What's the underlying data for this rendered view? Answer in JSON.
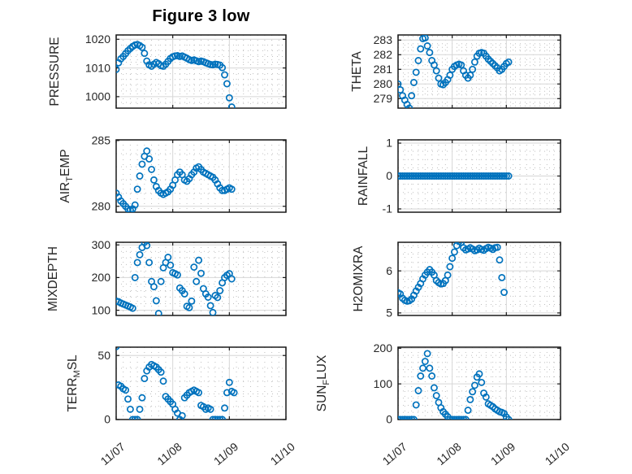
{
  "title": "Figure 3 low",
  "colors": {
    "marker": "#0072BD",
    "axis_text": "#262626",
    "border": "#1a1a1a",
    "grid_major": "#d6d6d6",
    "grid_minor": "#bfbfbf",
    "background": "#ffffff"
  },
  "x_axis": {
    "tick_labels": [
      "11/07",
      "11/08",
      "11/09",
      "11/10"
    ],
    "span_days": 3,
    "points_interval_hours": 1,
    "minor_step_hours": 3
  },
  "chart_data": [
    {
      "type": "scatter",
      "name": "pressure",
      "ylabel_parts": [
        {
          "text": "PRESSURE",
          "sub": false
        }
      ],
      "position": {
        "row": 0,
        "col": 0
      },
      "ylim": [
        996,
        1021.5
      ],
      "yticks": [
        1000,
        1010,
        1020
      ],
      "y_minor_step": 2,
      "values": [
        1009.5,
        1011.8,
        1013.2,
        1014.0,
        1015.0,
        1016.0,
        1016.8,
        1017.5,
        1018.0,
        1018.2,
        1017.8,
        1017.2,
        1015.1,
        1012.4,
        1011.1,
        1010.6,
        1011.3,
        1011.9,
        1011.5,
        1010.8,
        1010.6,
        1011.3,
        1012.3,
        1013.3,
        1013.9,
        1014.2,
        1014.3,
        1014.0,
        1014.2,
        1013.8,
        1013.4,
        1012.9,
        1012.6,
        1012.8,
        1012.5,
        1012.2,
        1012.4,
        1012.2,
        1011.8,
        1011.5,
        1011.2,
        1011.1,
        1011.3,
        1011.2,
        1011.0,
        1010.1,
        1007.6,
        1004.5,
        999.6,
        996.4
      ]
    },
    {
      "type": "scatter",
      "name": "theta",
      "ylabel_parts": [
        {
          "text": "THETA",
          "sub": false
        }
      ],
      "position": {
        "row": 0,
        "col": 1
      },
      "ylim": [
        278.35,
        283.35
      ],
      "yticks": [
        279,
        280,
        281,
        282,
        283
      ],
      "y_minor_step": 0.25,
      "values": [
        280.0,
        279.6,
        279.2,
        278.9,
        278.6,
        278.35,
        279.2,
        280.1,
        280.8,
        281.6,
        282.4,
        283.1,
        283.15,
        282.6,
        282.15,
        281.6,
        281.3,
        280.9,
        280.4,
        280.0,
        279.95,
        280.1,
        280.3,
        280.6,
        281.0,
        281.2,
        281.3,
        281.35,
        281.3,
        280.9,
        280.6,
        280.4,
        280.6,
        281.0,
        281.5,
        281.9,
        282.1,
        282.15,
        282.1,
        281.9,
        281.7,
        281.55,
        281.4,
        281.25,
        281.1,
        280.9,
        281.0,
        281.2,
        281.4,
        281.5
      ]
    },
    {
      "type": "scatter",
      "name": "air-temp",
      "ylabel_parts": [
        {
          "text": "AIR",
          "sub": false
        },
        {
          "text": "T",
          "sub": true
        },
        {
          "text": "EMP",
          "sub": false
        }
      ],
      "position": {
        "row": 1,
        "col": 0
      },
      "ylim": [
        279.55,
        285.05
      ],
      "yticks": [
        280,
        285
      ],
      "y_minor_step": 1,
      "values": [
        281.0,
        280.7,
        280.4,
        280.2,
        280.0,
        279.8,
        279.7,
        279.8,
        280.1,
        281.3,
        282.3,
        283.2,
        283.8,
        284.2,
        283.6,
        282.8,
        282.0,
        281.5,
        281.2,
        281.0,
        280.9,
        281.0,
        281.1,
        281.3,
        281.6,
        282.0,
        282.4,
        282.6,
        282.4,
        282.0,
        281.9,
        282.1,
        282.4,
        282.6,
        282.9,
        283.0,
        282.8,
        282.6,
        282.5,
        282.4,
        282.3,
        282.2,
        282.0,
        281.7,
        281.4,
        281.2,
        281.2,
        281.3,
        281.4,
        281.3
      ]
    },
    {
      "type": "scatter",
      "name": "rainfall",
      "ylabel_parts": [
        {
          "text": "RAINFALL",
          "sub": false
        }
      ],
      "position": {
        "row": 1,
        "col": 1
      },
      "ylim": [
        -1.1,
        1.1
      ],
      "yticks": [
        -1,
        0,
        1
      ],
      "y_minor_step": 0.25,
      "values": [
        0,
        0,
        0,
        0,
        0,
        0,
        0,
        0,
        0,
        0,
        0,
        0,
        0,
        0,
        0,
        0,
        0,
        0,
        0,
        0,
        0,
        0,
        0,
        0,
        0,
        0,
        0,
        0,
        0,
        0,
        0,
        0,
        0,
        0,
        0,
        0,
        0,
        0,
        0,
        0,
        0,
        0,
        0,
        0,
        0,
        0,
        0,
        0,
        0,
        0
      ]
    },
    {
      "type": "scatter",
      "name": "mixdepth",
      "ylabel_parts": [
        {
          "text": "MIXDEPTH",
          "sub": false
        }
      ],
      "position": {
        "row": 2,
        "col": 0
      },
      "ylim": [
        84,
        308
      ],
      "yticks": [
        100,
        200,
        300
      ],
      "y_minor_step": 20,
      "values": [
        128,
        126,
        122,
        119,
        116,
        113,
        110,
        106,
        200,
        246,
        270,
        292,
        308,
        298,
        246,
        188,
        172,
        129,
        90,
        188,
        230,
        246,
        262,
        238,
        215,
        212,
        208,
        168,
        160,
        150,
        112,
        108,
        128,
        232,
        188,
        253,
        213,
        166,
        150,
        140,
        114,
        93,
        145,
        139,
        160,
        184,
        200,
        207,
        212,
        196
      ]
    },
    {
      "type": "scatter",
      "name": "h2omixra",
      "ylabel_parts": [
        {
          "text": "H2OMIXRA",
          "sub": false
        }
      ],
      "position": {
        "row": 2,
        "col": 1
      },
      "ylim": [
        4.94,
        6.68
      ],
      "yticks": [
        5,
        6
      ],
      "y_minor_step": 0.2,
      "values": [
        5.48,
        5.45,
        5.35,
        5.3,
        5.28,
        5.29,
        5.33,
        5.42,
        5.52,
        5.61,
        5.7,
        5.81,
        5.9,
        5.97,
        6.03,
        5.97,
        5.9,
        5.77,
        5.72,
        5.69,
        5.7,
        5.77,
        5.9,
        6.1,
        6.3,
        6.45,
        6.6,
        6.7,
        6.68,
        6.55,
        6.5,
        6.52,
        6.55,
        6.52,
        6.48,
        6.5,
        6.54,
        6.51,
        6.49,
        6.53,
        6.56,
        6.54,
        6.51,
        6.55,
        6.56,
        6.26,
        5.84,
        5.49
      ]
    },
    {
      "type": "scatter",
      "name": "terr-msl",
      "ylabel_parts": [
        {
          "text": "TERR",
          "sub": false
        },
        {
          "text": "M",
          "sub": true
        },
        {
          "text": "SL",
          "sub": false
        }
      ],
      "position": {
        "row": 3,
        "col": 0
      },
      "ylim": [
        0,
        56.5
      ],
      "yticks": [
        0,
        50
      ],
      "y_minor_step": 10,
      "values": [
        57,
        27,
        26,
        24,
        23,
        16,
        8,
        0,
        0,
        0,
        8,
        17,
        32,
        38,
        41,
        43,
        42,
        41,
        39,
        37,
        30,
        18,
        16,
        14,
        12,
        8,
        5,
        0,
        3,
        17,
        19,
        21,
        22,
        23,
        22,
        21,
        11,
        10,
        8,
        9,
        8,
        0,
        0,
        0,
        0,
        0,
        9,
        21,
        29,
        22,
        21
      ]
    },
    {
      "type": "scatter",
      "name": "sun-flux",
      "ylabel_parts": [
        {
          "text": "SUN",
          "sub": false
        },
        {
          "text": "F",
          "sub": true
        },
        {
          "text": "LUX",
          "sub": false
        }
      ],
      "position": {
        "row": 3,
        "col": 1
      },
      "ylim": [
        0,
        203
      ],
      "yticks": [
        0,
        100,
        200
      ],
      "y_minor_step": 20,
      "values": [
        0,
        0,
        0,
        0,
        0,
        0,
        0,
        0,
        41,
        81,
        122,
        144,
        163,
        185,
        144,
        122,
        89,
        67,
        48,
        33,
        22,
        15,
        8,
        0,
        0,
        0,
        0,
        0,
        0,
        0,
        0,
        26,
        56,
        78,
        96,
        119,
        128,
        104,
        74,
        63,
        44,
        40,
        36,
        30,
        26,
        22,
        20,
        17,
        7,
        0
      ]
    }
  ]
}
